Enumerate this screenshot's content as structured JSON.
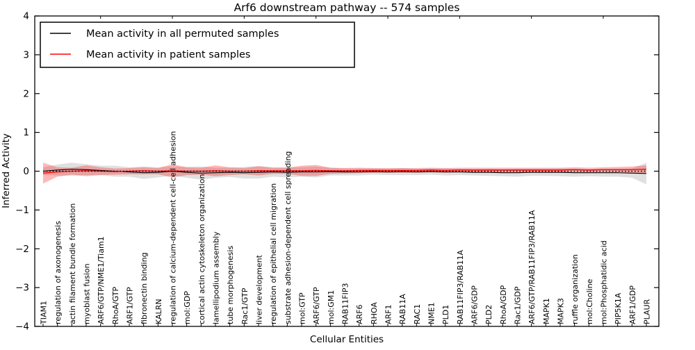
{
  "chart_data": {
    "type": "line",
    "title": "Arf6 downstream pathway -- 574 samples",
    "xlabel": "Cellular Entities",
    "ylabel": "Inferred Activity",
    "ylim": [
      -4,
      4
    ],
    "yticks": [
      -4,
      -3,
      -2,
      -1,
      0,
      1,
      2,
      3,
      4
    ],
    "ytick_labels": [
      "−4",
      "−3",
      "−2",
      "−1",
      "0",
      "1",
      "2",
      "3",
      "4"
    ],
    "grid": false,
    "legend": {
      "position": "upper left",
      "entries": [
        {
          "label": "Mean activity in all permuted samples",
          "color": "#000000"
        },
        {
          "label": "Mean activity in patient samples",
          "color": "#ff0000"
        }
      ]
    },
    "categories": [
      "TIAM1",
      "regulation of axonogenesis",
      "actin filament bundle formation",
      "myoblast fusion",
      "ARF6/GTP/NME1/Tiam1",
      "RhoA/GTP",
      "ARF1/GTP",
      "fibronectin binding",
      "KALRN",
      "regulation of calcium-dependent cell-cell adhesion",
      "mol:GDP",
      "cortical actin cytoskeleton organization",
      "lamellipodium assembly",
      "tube morphogenesis",
      "Rac1/GTP",
      "liver development",
      "regulation of epithelial cell migration",
      "substrate adhesion-dependent cell spreading",
      "mol:GTP",
      "ARF6/GTP",
      "mol:GM1",
      "RAB11FIP3",
      "ARF6",
      "RHOA",
      "ARF1",
      "RAB11A",
      "RAC1",
      "NME1",
      "PLD1",
      "RAB11FIP3/RAB11A",
      "ARF6/GDP",
      "PLD2",
      "RhoA/GDP",
      "Rac1/GDP",
      "ARF6/GTP/RAB11FIP3/RAB11A",
      "MAPK1",
      "MAPK3",
      "ruffle organization",
      "mol:Choline",
      "mol:Phosphatidic acid",
      "PIP5K1A",
      "ARF1/GDP",
      "PLAUR"
    ],
    "series": [
      {
        "name": "Mean activity in all permuted samples",
        "color": "#000000",
        "band_color": "#bbbbbb",
        "band_opacity": 0.45,
        "values": [
          0.0,
          0.03,
          0.05,
          0.04,
          0.02,
          0.0,
          -0.02,
          -0.04,
          -0.03,
          0.0,
          -0.03,
          -0.05,
          -0.04,
          -0.03,
          -0.04,
          -0.03,
          -0.02,
          -0.03,
          -0.02,
          -0.02,
          -0.01,
          -0.02,
          -0.02,
          -0.01,
          -0.02,
          -0.01,
          -0.02,
          -0.01,
          -0.02,
          -0.02,
          -0.03,
          -0.03,
          -0.04,
          -0.04,
          -0.03,
          -0.03,
          -0.03,
          -0.04,
          -0.04,
          -0.04,
          -0.04,
          -0.05,
          -0.06
        ],
        "std": [
          0.1,
          0.14,
          0.17,
          0.14,
          0.12,
          0.14,
          0.12,
          0.16,
          0.13,
          0.12,
          0.14,
          0.17,
          0.13,
          0.12,
          0.15,
          0.16,
          0.12,
          0.13,
          0.12,
          0.14,
          0.1,
          0.09,
          0.09,
          0.08,
          0.08,
          0.09,
          0.08,
          0.08,
          0.09,
          0.08,
          0.08,
          0.09,
          0.09,
          0.1,
          0.09,
          0.09,
          0.1,
          0.1,
          0.09,
          0.1,
          0.1,
          0.12,
          0.28
        ]
      },
      {
        "name": "Mean activity in patient samples",
        "color": "#ff0000",
        "band_color": "#ff0000",
        "band_opacity": 0.28,
        "values": [
          -0.05,
          -0.02,
          0.0,
          0.01,
          0.0,
          -0.01,
          0.0,
          0.01,
          0.0,
          0.01,
          0.0,
          0.0,
          0.01,
          0.0,
          0.0,
          0.01,
          0.01,
          0.01,
          0.01,
          0.02,
          0.01,
          0.01,
          0.02,
          0.02,
          0.02,
          0.02,
          0.02,
          0.03,
          0.02,
          0.03,
          0.03,
          0.03,
          0.03,
          0.03,
          0.03,
          0.03,
          0.03,
          0.04,
          0.03,
          0.04,
          0.04,
          0.04,
          0.05
        ],
        "std": [
          0.27,
          0.12,
          0.09,
          0.14,
          0.1,
          0.08,
          0.08,
          0.09,
          0.08,
          0.17,
          0.1,
          0.09,
          0.14,
          0.1,
          0.08,
          0.12,
          0.08,
          0.08,
          0.13,
          0.14,
          0.08,
          0.07,
          0.07,
          0.06,
          0.06,
          0.06,
          0.06,
          0.06,
          0.06,
          0.06,
          0.06,
          0.06,
          0.06,
          0.06,
          0.06,
          0.06,
          0.06,
          0.06,
          0.06,
          0.06,
          0.07,
          0.08,
          0.1
        ]
      }
    ],
    "zero_line": {
      "style": "dotted",
      "color": "#000000",
      "y": 0
    }
  }
}
